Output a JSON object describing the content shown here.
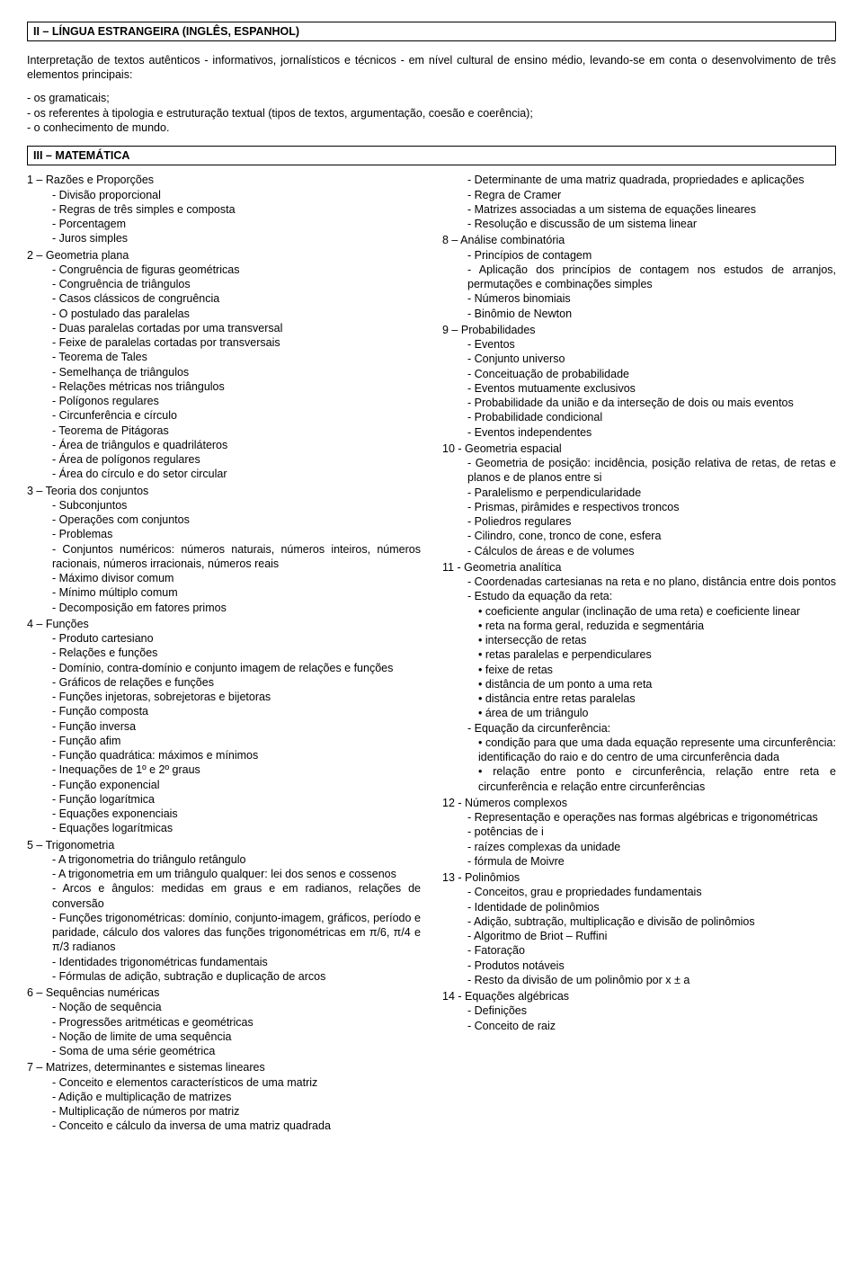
{
  "sectionII": {
    "title": "II – LÍNGUA ESTRANGEIRA (INGLÊS, ESPANHOL)",
    "intro": "Interpretação de textos autênticos - informativos, jornalísticos e técnicos - em nível cultural de ensino médio, levando-se em conta o desenvolvimento de três elementos principais:",
    "points": [
      "os gramaticais;",
      "os referentes à tipologia e estruturação textual (tipos de textos, argumentação, coesão e coerência);",
      "o conhecimento de mundo."
    ]
  },
  "sectionIII": {
    "title": "III – MATEMÁTICA",
    "left": [
      {
        "num": "1 –",
        "title": "Razões e Proporções",
        "subs": [
          "Divisão proporcional",
          "Regras de três simples e composta",
          "Porcentagem",
          "Juros simples"
        ]
      },
      {
        "num": "2 –",
        "title": "Geometria plana",
        "subs": [
          "Congruência de figuras geométricas",
          "Congruência de triângulos",
          "Casos clássicos de congruência",
          "O postulado das paralelas",
          "Duas paralelas cortadas por uma transversal",
          "Feixe de paralelas cortadas por transversais",
          "Teorema de Tales",
          "Semelhança de triângulos",
          "Relações métricas nos triângulos",
          "Polígonos regulares",
          "Circunferência e círculo",
          "Teorema de Pitágoras",
          "Área de triângulos e quadriláteros",
          "Área de polígonos regulares",
          "Área do círculo e do setor circular"
        ]
      },
      {
        "num": "3 –",
        "title": "Teoria dos conjuntos",
        "subs": [
          "Subconjuntos",
          "Operações com conjuntos",
          "Problemas",
          "Conjuntos numéricos: números naturais, números inteiros, números racionais, números irracionais, números reais",
          "Máximo divisor comum",
          "Mínimo múltiplo comum",
          "Decomposição em fatores primos"
        ]
      },
      {
        "num": "4 –",
        "title": "Funções",
        "subs": [
          "Produto cartesiano",
          "Relações e funções",
          "Domínio, contra-domínio e conjunto imagem de relações e funções",
          "Gráficos de relações e funções",
          "Funções injetoras, sobrejetoras e bijetoras",
          "Função composta",
          "Função inversa",
          "Função afim",
          "Função quadrática: máximos e mínimos",
          "Inequações de 1º e 2º graus",
          "Função exponencial",
          "Função logarítmica",
          "Equações exponenciais",
          "Equações logarítmicas"
        ]
      },
      {
        "num": "5 –",
        "title": "Trigonometria",
        "subs": [
          "A trigonometria do triângulo retângulo",
          "A trigonometria em um triângulo qualquer: lei dos senos e cossenos",
          "Arcos e ângulos: medidas em graus e em radianos, relações de conversão",
          "Funções trigonométricas: domínio, conjunto-imagem, gráficos, período e paridade, cálculo dos valores das funções trigonométricas em π/6, π/4 e π/3 radianos",
          "Identidades trigonométricas fundamentais",
          "Fórmulas de adição, subtração e duplicação de arcos"
        ]
      },
      {
        "num": "6 –",
        "title": "Sequências numéricas",
        "subs": [
          "Noção de sequência",
          "Progressões aritméticas e geométricas",
          "Noção de limite de uma sequência",
          "Soma de uma série geométrica"
        ]
      },
      {
        "num": "7 –",
        "title": "Matrizes, determinantes e sistemas lineares",
        "subs": [
          "Conceito e elementos característicos de uma matriz",
          "Adição e multiplicação de matrizes",
          "Multiplicação de números por matriz",
          "Conceito e cálculo da inversa de uma matriz quadrada"
        ]
      }
    ],
    "right": [
      {
        "cont": true,
        "subs": [
          "Determinante de uma matriz quadrada, propriedades e aplicações",
          "Regra de Cramer",
          "Matrizes associadas a um sistema de equações lineares",
          "Resolução e discussão de um sistema linear"
        ]
      },
      {
        "num": "8 –",
        "title": "Análise combinatória",
        "subs": [
          "Princípios de contagem",
          "Aplicação dos princípios de contagem nos estudos de arranjos, permutações e combinações simples",
          "Números binomiais",
          "Binômio de Newton"
        ]
      },
      {
        "num": "9 –",
        "title": "Probabilidades",
        "subs": [
          "Eventos",
          "Conjunto universo",
          "Conceituação de probabilidade",
          "Eventos mutuamente exclusivos",
          "Probabilidade da união e da interseção de dois ou mais eventos",
          "Probabilidade condicional",
          "Eventos independentes"
        ]
      },
      {
        "num": "10 -",
        "title": "Geometria espacial",
        "subs": [
          "Geometria de posição: incidência, posição relativa de retas, de retas e planos e de planos entre si",
          "Paralelismo e perpendicularidade",
          "Prismas, pirâmides e respectivos troncos",
          "Poliedros regulares",
          "Cilindro, cone, tronco de cone, esfera",
          "Cálculos de áreas e de volumes"
        ]
      },
      {
        "num": "11 -",
        "title": "Geometria analítica",
        "subs": [
          "Coordenadas cartesianas na reta e no plano, distância entre dois pontos",
          "Estudo da equação da reta:"
        ],
        "bullets1": [
          "coeficiente angular (inclinação de uma reta) e coeficiente linear",
          "reta na forma geral, reduzida e segmentária",
          "intersecção de retas",
          "retas paralelas e perpendiculares",
          "feixe de retas",
          "distância de um ponto a uma reta",
          "distância entre retas paralelas",
          "área de um triângulo"
        ],
        "subs2": [
          "Equação da circunferência:"
        ],
        "bullets2": [
          "condição para que uma dada equação represente uma circunferência: identificação do raio e do centro de uma circunferência dada",
          "relação entre ponto e circunferência, relação entre reta e circunferência e relação entre circunferências"
        ]
      },
      {
        "num": "12 -",
        "title": "Números complexos",
        "subs": [
          "Representação e operações nas formas algébricas e trigonométricas",
          "potências de i",
          "raízes complexas da unidade",
          "fórmula de Moivre"
        ]
      },
      {
        "num": "13 -",
        "title": "Polinômios",
        "subs": [
          "Conceitos, grau e propriedades fundamentais",
          "Identidade de polinômios",
          "Adição, subtração, multiplicação e divisão de polinômios",
          "Algoritmo de Briot – Ruffini",
          "Fatoração",
          "Produtos notáveis",
          "Resto da divisão de um polinômio por x ± a"
        ]
      },
      {
        "num": "14 -",
        "title": "Equações algébricas",
        "subs": [
          "Definições",
          "Conceito de raiz"
        ]
      }
    ]
  }
}
